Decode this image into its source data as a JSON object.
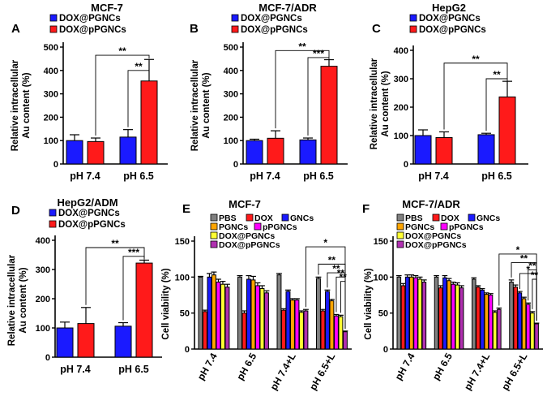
{
  "colors": {
    "blue": "#1a1aff",
    "red": "#ff1a1a",
    "grey": "#808080",
    "orange": "#ffa500",
    "magenta": "#ff00ff",
    "yellow": "#ffff33",
    "purple": "#b030b0",
    "axis": "#000000"
  },
  "chart_data": [
    {
      "panel": "A",
      "type": "bar",
      "title": "MCF-7",
      "ylabel": [
        "Relative intracellular",
        "Au content (%)"
      ],
      "categories": [
        "pH 7.4",
        "pH 6.5"
      ],
      "ylim": [
        0,
        500
      ],
      "yticks": [
        0,
        100,
        200,
        300,
        400,
        500
      ],
      "series": [
        {
          "name": "DOX@PGNCs",
          "color": "#1a1aff",
          "values": [
            100,
            115
          ],
          "errors": [
            25,
            32
          ]
        },
        {
          "name": "DOX@pPGNCs",
          "color": "#ff1a1a",
          "values": [
            96,
            355
          ],
          "errors": [
            15,
            92
          ]
        }
      ],
      "annotations": [
        {
          "label": "**",
          "from_group": 0,
          "from_series": 1,
          "to_group": 1,
          "to_series": 1,
          "level": 465
        },
        {
          "label": "**",
          "from_group": 1,
          "from_series": 0,
          "to_group": 1,
          "to_series": 1,
          "level": 400
        }
      ]
    },
    {
      "panel": "B",
      "type": "bar",
      "title": "MCF-7/ADR",
      "ylabel": [
        "Relative intracellular",
        "Au content (%)"
      ],
      "categories": [
        "pH 7.4",
        "pH 6.5"
      ],
      "ylim": [
        0,
        500
      ],
      "yticks": [
        0,
        100,
        200,
        300,
        400,
        500
      ],
      "series": [
        {
          "name": "DOX@PGNCs",
          "color": "#1a1aff",
          "values": [
            100,
            103
          ],
          "errors": [
            6,
            8
          ]
        },
        {
          "name": "DOX@pPGNCs",
          "color": "#ff1a1a",
          "values": [
            110,
            418
          ],
          "errors": [
            32,
            28
          ]
        }
      ],
      "annotations": [
        {
          "label": "**",
          "from_group": 0,
          "from_series": 1,
          "to_group": 1,
          "to_series": 1,
          "level": 485
        },
        {
          "label": "***",
          "from_group": 1,
          "from_series": 0,
          "to_group": 1,
          "to_series": 1,
          "level": 455
        }
      ]
    },
    {
      "panel": "C",
      "type": "bar",
      "title": "HepG2",
      "ylabel": [
        "Relative intracellular",
        "Au content (%)"
      ],
      "categories": [
        "pH 7.4",
        "pH 6.5"
      ],
      "ylim": [
        0,
        400
      ],
      "yticks": [
        0,
        100,
        200,
        300,
        400
      ],
      "series": [
        {
          "name": "DOX@PGNCs",
          "color": "#1a1aff",
          "values": [
            100,
            103
          ],
          "errors": [
            20,
            5
          ]
        },
        {
          "name": "DOX@pPGNCs",
          "color": "#ff1a1a",
          "values": [
            93,
            236
          ],
          "errors": [
            20,
            55
          ]
        }
      ],
      "annotations": [
        {
          "label": "**",
          "from_group": 0,
          "from_series": 1,
          "to_group": 1,
          "to_series": 1,
          "level": 355
        },
        {
          "label": "**",
          "from_group": 1,
          "from_series": 0,
          "to_group": 1,
          "to_series": 1,
          "level": 300
        }
      ]
    },
    {
      "panel": "D",
      "type": "bar",
      "title": "HepG2/ADM",
      "ylabel": [
        "Relative intracellular",
        "Au content (%)"
      ],
      "categories": [
        "pH 7.4",
        "pH 6.5"
      ],
      "ylim": [
        0,
        400
      ],
      "yticks": [
        0,
        100,
        200,
        300,
        400
      ],
      "series": [
        {
          "name": "DOX@PGNCs",
          "color": "#1a1aff",
          "values": [
            100,
            106
          ],
          "errors": [
            20,
            12
          ]
        },
        {
          "name": "DOX@pPGNCs",
          "color": "#ff1a1a",
          "values": [
            115,
            322
          ],
          "errors": [
            55,
            10
          ]
        }
      ],
      "annotations": [
        {
          "label": "**",
          "from_group": 0,
          "from_series": 1,
          "to_group": 1,
          "to_series": 1,
          "level": 375
        },
        {
          "label": "***",
          "from_group": 1,
          "from_series": 0,
          "to_group": 1,
          "to_series": 1,
          "level": 345
        }
      ]
    },
    {
      "panel": "E",
      "type": "bar",
      "title": "MCF-7",
      "ylabel": [
        "Cell viability (%)"
      ],
      "categories": [
        "pH 7.4",
        "pH 6.5",
        "pH 7.4+L",
        "pH 6.5+L"
      ],
      "ylim": [
        0,
        150
      ],
      "yticks": [
        0,
        50,
        100,
        150
      ],
      "series": [
        {
          "name": "PBS",
          "color": "#808080",
          "values": [
            100,
            100,
            103,
            98
          ],
          "errors": [
            1,
            2,
            2,
            2
          ]
        },
        {
          "name": "DOX",
          "color": "#ff1a1a",
          "values": [
            52,
            50,
            54,
            53
          ],
          "errors": [
            2,
            3,
            2,
            2
          ]
        },
        {
          "name": "GNCs",
          "color": "#1a1aff",
          "values": [
            100,
            97,
            80,
            80
          ],
          "errors": [
            5,
            5,
            2,
            2
          ]
        },
        {
          "name": "PGNCs",
          "color": "#ffa500",
          "values": [
            103,
            96,
            68,
            67
          ],
          "errors": [
            4,
            5,
            2,
            2
          ]
        },
        {
          "name": "pPGNCs",
          "color": "#ff00ff",
          "values": [
            93,
            88,
            68,
            46
          ],
          "errors": [
            4,
            4,
            2,
            2
          ]
        },
        {
          "name": "DOX@PGNCs",
          "color": "#ffff33",
          "values": [
            90,
            84,
            51,
            45
          ],
          "errors": [
            4,
            4,
            2,
            2
          ]
        },
        {
          "name": "DOX@pPGNCs",
          "color": "#b030b0",
          "values": [
            86,
            78,
            53,
            24
          ],
          "errors": [
            4,
            3,
            2,
            1
          ]
        }
      ],
      "annotations": [
        {
          "label": "*",
          "from_group": 2,
          "from_series": 6,
          "to_group": 3,
          "to_series": 6,
          "level": 142
        },
        {
          "label": "**",
          "from_group": 3,
          "from_series": 0,
          "to_group": 3,
          "to_series": 6,
          "level": 118
        },
        {
          "label": "**",
          "from_group": 3,
          "from_series": 2,
          "to_group": 3,
          "to_series": 6,
          "level": 106
        },
        {
          "label": "**",
          "from_group": 3,
          "from_series": 4,
          "to_group": 3,
          "to_series": 6,
          "level": 100
        },
        {
          "label": "**",
          "from_group": 3,
          "from_series": 5,
          "to_group": 3,
          "to_series": 6,
          "level": 94
        }
      ]
    },
    {
      "panel": "F",
      "type": "bar",
      "title": "MCF-7/ADR",
      "ylabel": [
        "Cell viability (%)"
      ],
      "categories": [
        "pH 7.4",
        "pH 6.5",
        "pH 7.4+L",
        "pH 6.5+L"
      ],
      "ylim": [
        0,
        150
      ],
      "yticks": [
        0,
        50,
        100,
        150
      ],
      "series": [
        {
          "name": "PBS",
          "color": "#808080",
          "values": [
            100,
            100,
            97,
            93
          ],
          "errors": [
            2,
            2,
            2,
            3
          ]
        },
        {
          "name": "DOX",
          "color": "#ff1a1a",
          "values": [
            88,
            85,
            86,
            86
          ],
          "errors": [
            3,
            3,
            2,
            3
          ]
        },
        {
          "name": "GNCs",
          "color": "#1a1aff",
          "values": [
            100,
            99,
            82,
            78
          ],
          "errors": [
            3,
            3,
            2,
            2
          ]
        },
        {
          "name": "PGNCs",
          "color": "#ffa500",
          "values": [
            100,
            95,
            76,
            70
          ],
          "errors": [
            3,
            3,
            2,
            2
          ]
        },
        {
          "name": "pPGNCs",
          "color": "#ff00ff",
          "values": [
            99,
            90,
            75,
            62
          ],
          "errors": [
            3,
            3,
            2,
            2
          ]
        },
        {
          "name": "DOX@PGNCs",
          "color": "#ffff33",
          "values": [
            97,
            89,
            51,
            50
          ],
          "errors": [
            3,
            3,
            2,
            2
          ]
        },
        {
          "name": "DOX@pPGNCs",
          "color": "#b030b0",
          "values": [
            93,
            85,
            55,
            35
          ],
          "errors": [
            3,
            3,
            2,
            1
          ]
        }
      ],
      "annotations": [
        {
          "label": "*",
          "from_group": 2,
          "from_series": 6,
          "to_group": 3,
          "to_series": 6,
          "level": 132
        },
        {
          "label": "**",
          "from_group": 3,
          "from_series": 0,
          "to_group": 3,
          "to_series": 6,
          "level": 120
        },
        {
          "label": "*",
          "from_group": 3,
          "from_series": 2,
          "to_group": 3,
          "to_series": 6,
          "level": 105
        },
        {
          "label": "**",
          "from_group": 3,
          "from_series": 4,
          "to_group": 3,
          "to_series": 6,
          "level": 110
        },
        {
          "label": "**",
          "from_group": 3,
          "from_series": 5,
          "to_group": 3,
          "to_series": 6,
          "level": 97
        }
      ]
    }
  ]
}
